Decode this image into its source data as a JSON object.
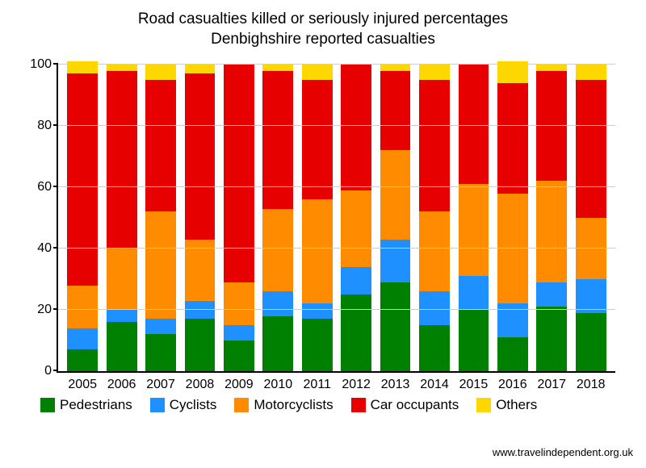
{
  "chart": {
    "type": "stacked-bar",
    "title_line1": "Road casualties killed or seriously injured percentages",
    "title_line2": "Denbighshire reported casualties",
    "title_fontsize": 19,
    "label_fontsize": 16,
    "legend_fontsize": 17,
    "background_color": "#ffffff",
    "grid_color": "#cccccc",
    "axis_color": "#000000",
    "ylim": [
      0,
      100
    ],
    "ytick_step": 20,
    "yticks": [
      0,
      20,
      40,
      60,
      80,
      100
    ],
    "bar_width": 0.78,
    "categories": [
      "2005",
      "2006",
      "2007",
      "2008",
      "2009",
      "2010",
      "2011",
      "2012",
      "2013",
      "2014",
      "2015",
      "2016",
      "2017",
      "2018"
    ],
    "series": [
      {
        "name": "Pedestrians",
        "color": "#008000"
      },
      {
        "name": "Cyclists",
        "color": "#1e90ff"
      },
      {
        "name": "Motorcyclists",
        "color": "#ff8c00"
      },
      {
        "name": "Car occupants",
        "color": "#e60000"
      },
      {
        "name": "Others",
        "color": "#ffd700"
      }
    ],
    "data": [
      {
        "Pedestrians": 7,
        "Cyclists": 7,
        "Motorcyclists": 14,
        "Car occupants": 69,
        "Others": 4
      },
      {
        "Pedestrians": 16,
        "Cyclists": 4,
        "Motorcyclists": 20,
        "Car occupants": 58,
        "Others": 2
      },
      {
        "Pedestrians": 12,
        "Cyclists": 5,
        "Motorcyclists": 35,
        "Car occupants": 43,
        "Others": 5
      },
      {
        "Pedestrians": 17,
        "Cyclists": 6,
        "Motorcyclists": 20,
        "Car occupants": 54,
        "Others": 3
      },
      {
        "Pedestrians": 10,
        "Cyclists": 5,
        "Motorcyclists": 14,
        "Car occupants": 71,
        "Others": 0
      },
      {
        "Pedestrians": 18,
        "Cyclists": 8,
        "Motorcyclists": 27,
        "Car occupants": 45,
        "Others": 2
      },
      {
        "Pedestrians": 17,
        "Cyclists": 5,
        "Motorcyclists": 34,
        "Car occupants": 39,
        "Others": 5
      },
      {
        "Pedestrians": 25,
        "Cyclists": 9,
        "Motorcyclists": 25,
        "Car occupants": 41,
        "Others": 0
      },
      {
        "Pedestrians": 29,
        "Cyclists": 14,
        "Motorcyclists": 29,
        "Car occupants": 26,
        "Others": 2
      },
      {
        "Pedestrians": 15,
        "Cyclists": 11,
        "Motorcyclists": 26,
        "Car occupants": 43,
        "Others": 5
      },
      {
        "Pedestrians": 20,
        "Cyclists": 11,
        "Motorcyclists": 30,
        "Car occupants": 39,
        "Others": 0
      },
      {
        "Pedestrians": 11,
        "Cyclists": 11,
        "Motorcyclists": 36,
        "Car occupants": 36,
        "Others": 7
      },
      {
        "Pedestrians": 21,
        "Cyclists": 8,
        "Motorcyclists": 33,
        "Car occupants": 36,
        "Others": 2
      },
      {
        "Pedestrians": 19,
        "Cyclists": 11,
        "Motorcyclists": 20,
        "Car occupants": 45,
        "Others": 5
      }
    ],
    "credit": "www.travelindependent.org.uk"
  }
}
